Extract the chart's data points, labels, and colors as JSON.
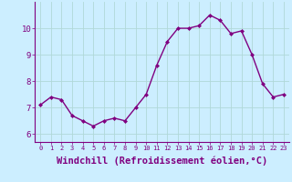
{
  "x": [
    0,
    1,
    2,
    3,
    4,
    5,
    6,
    7,
    8,
    9,
    10,
    11,
    12,
    13,
    14,
    15,
    16,
    17,
    18,
    19,
    20,
    21,
    22,
    23
  ],
  "y": [
    7.1,
    7.4,
    7.3,
    6.7,
    6.5,
    6.3,
    6.5,
    6.6,
    6.5,
    7.0,
    7.5,
    8.6,
    9.5,
    10.0,
    10.0,
    10.1,
    10.5,
    10.3,
    9.8,
    9.9,
    9.0,
    7.9,
    7.4,
    7.5
  ],
  "line_color": "#800080",
  "marker": "D",
  "marker_size": 2.0,
  "linewidth": 1.0,
  "xlabel": "Windchill (Refroidissement éolien,°C)",
  "xlabel_fontsize": 7.5,
  "xtick_labels": [
    "0",
    "1",
    "2",
    "3",
    "4",
    "5",
    "6",
    "7",
    "8",
    "9",
    "10",
    "11",
    "12",
    "13",
    "14",
    "15",
    "16",
    "17",
    "18",
    "19",
    "20",
    "21",
    "22",
    "23"
  ],
  "ylim": [
    5.7,
    11.0
  ],
  "yticks": [
    6,
    7,
    8,
    9,
    10
  ],
  "bg_color": "#cceeff",
  "grid_color": "#aadddd",
  "tick_color": "#800080",
  "label_color": "#800080",
  "spine_color": "#800080"
}
